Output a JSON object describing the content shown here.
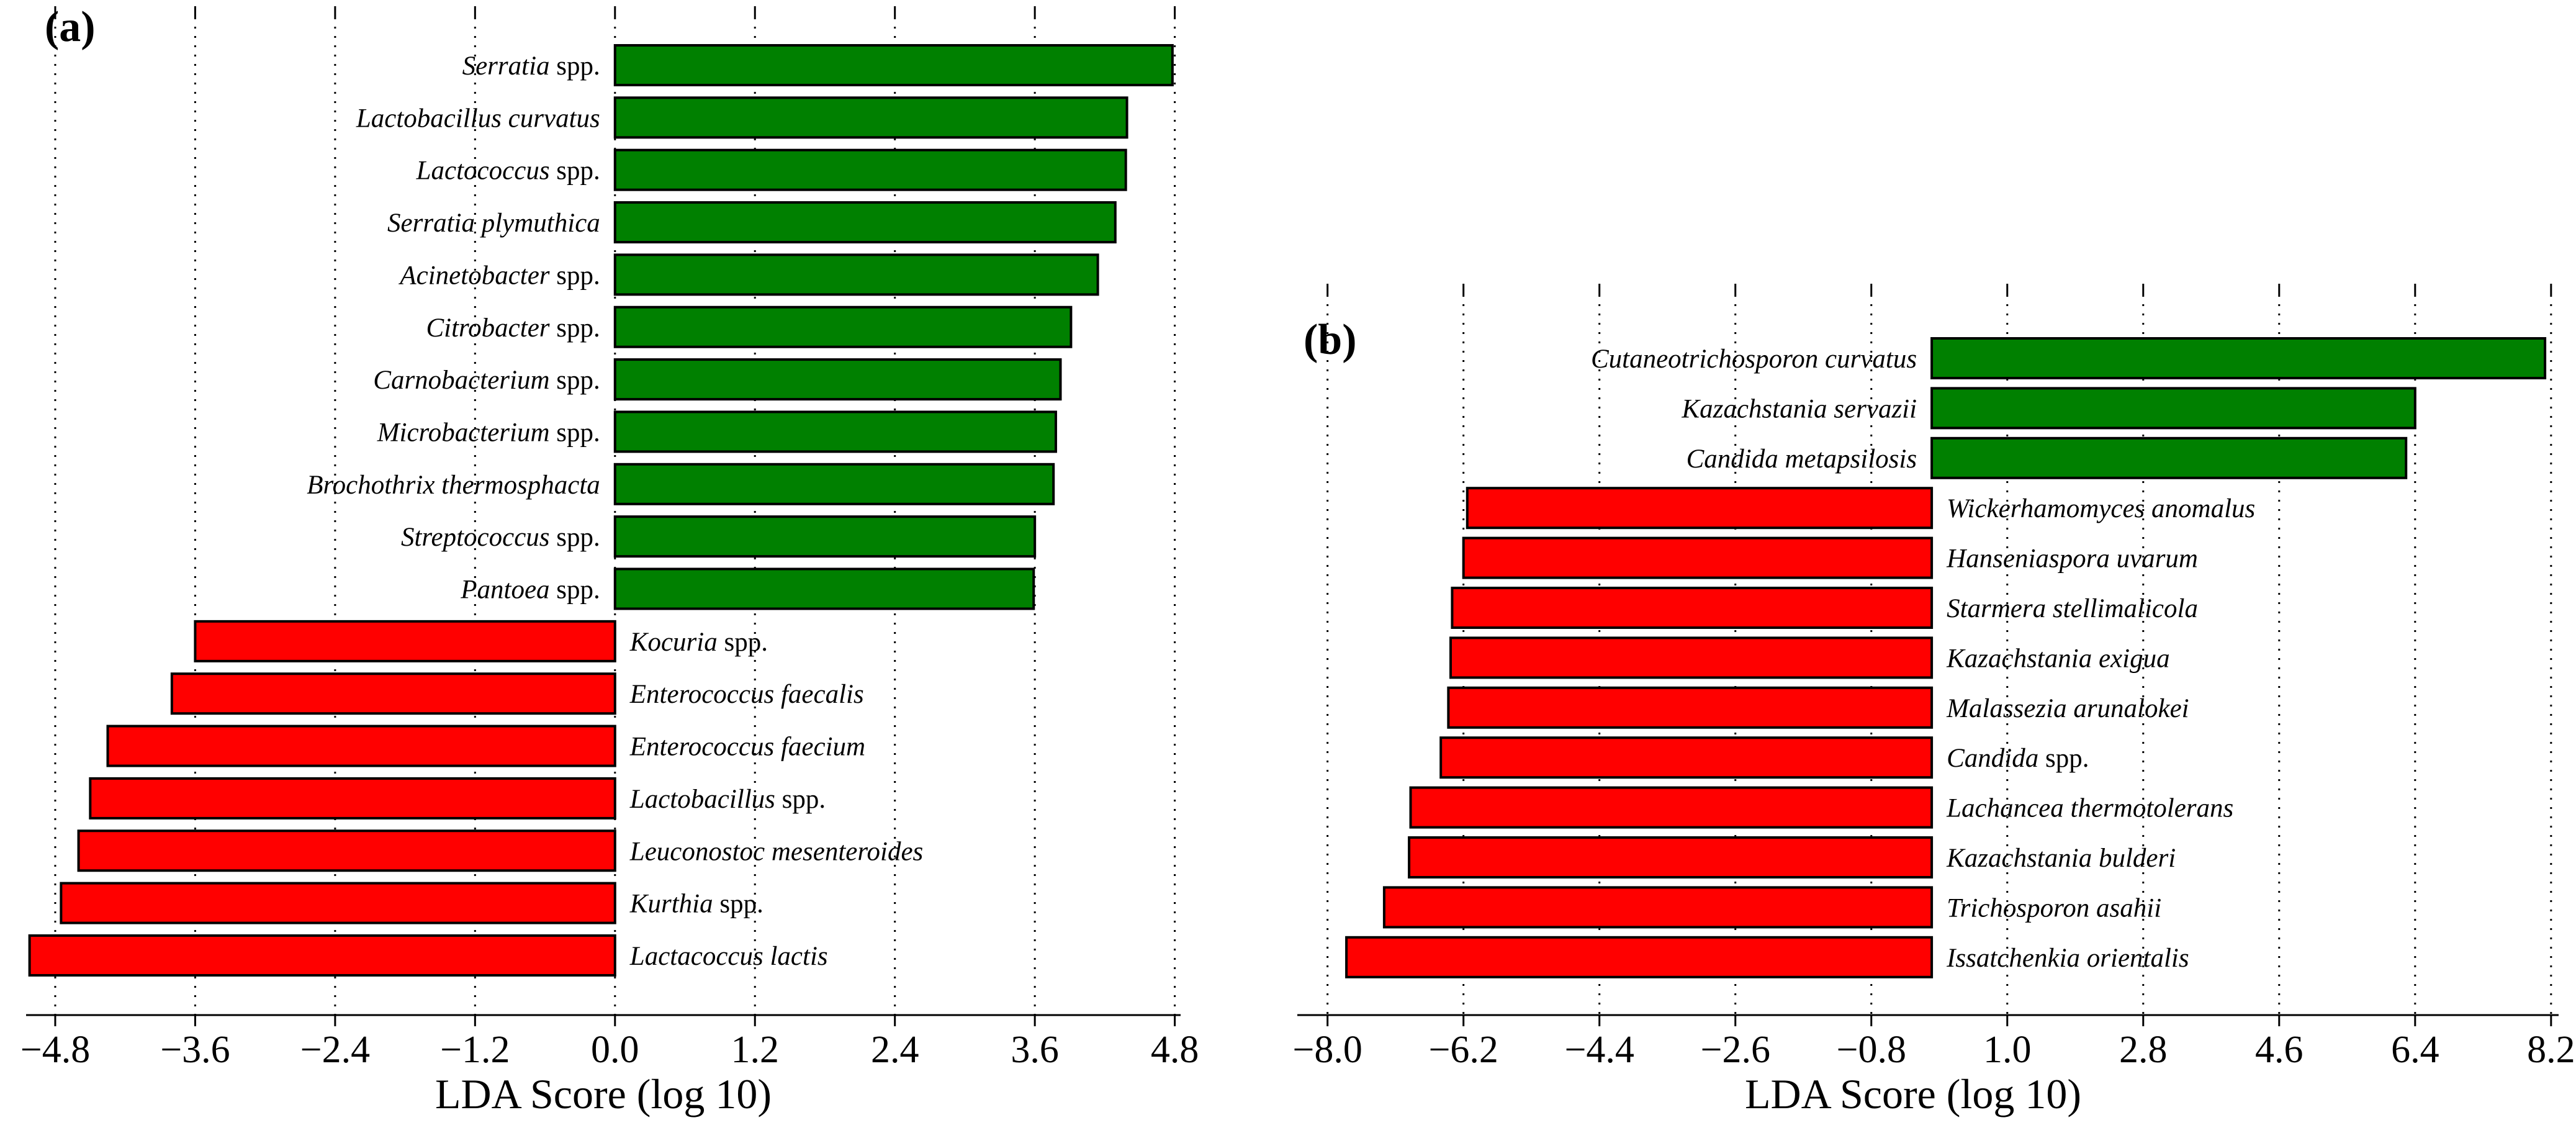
{
  "colors": {
    "enriched_positive": "#008000",
    "enriched_negative": "#ff0000",
    "bar_outline": "#000000"
  },
  "chart_data": [
    {
      "type": "bar",
      "orientation": "horizontal",
      "panel_label": "(a)",
      "xlabel": "LDA Score (log 10)",
      "xlim": [
        -5.05,
        4.85
      ],
      "ticks": [
        -4.8,
        -3.6,
        -2.4,
        -1.2,
        0.0,
        1.2,
        2.4,
        3.6,
        4.8
      ],
      "tick_labels": [
        "−4.8",
        "−3.6",
        "−2.4",
        "−1.2",
        "0.0",
        "1.2",
        "2.4",
        "3.6",
        "4.8"
      ],
      "grid": "dotted vertical at ticks",
      "categories": [
        {
          "parts": [
            {
              "text": "Serratia",
              "italic": true
            },
            {
              "text": " spp.",
              "italic": false
            }
          ]
        },
        {
          "parts": [
            {
              "text": "Lactobacillus curvatus",
              "italic": true
            }
          ]
        },
        {
          "parts": [
            {
              "text": "Lactococcus",
              "italic": true
            },
            {
              "text": " spp.",
              "italic": false
            }
          ]
        },
        {
          "parts": [
            {
              "text": "Serratia plymuthica",
              "italic": true
            }
          ]
        },
        {
          "parts": [
            {
              "text": "Acinetobacter",
              "italic": true
            },
            {
              "text": " spp.",
              "italic": false
            }
          ]
        },
        {
          "parts": [
            {
              "text": "Citrobacter",
              "italic": true
            },
            {
              "text": " spp.",
              "italic": false
            }
          ]
        },
        {
          "parts": [
            {
              "text": "Carnobacterium",
              "italic": true
            },
            {
              "text": " spp.",
              "italic": false
            }
          ]
        },
        {
          "parts": [
            {
              "text": "Microbacterium",
              "italic": true
            },
            {
              "text": " spp.",
              "italic": false
            }
          ]
        },
        {
          "parts": [
            {
              "text": "Brochothrix thermosphacta",
              "italic": true
            }
          ]
        },
        {
          "parts": [
            {
              "text": "Streptococcus",
              "italic": true
            },
            {
              "text": " spp.",
              "italic": false
            }
          ]
        },
        {
          "parts": [
            {
              "text": "Pantoea",
              "italic": true
            },
            {
              "text": " spp.",
              "italic": false
            }
          ]
        },
        {
          "parts": [
            {
              "text": "Kocuria",
              "italic": true
            },
            {
              "text": " spp.",
              "italic": false
            }
          ]
        },
        {
          "parts": [
            {
              "text": "Enterococcus faecalis",
              "italic": true
            }
          ]
        },
        {
          "parts": [
            {
              "text": "Enterococcus faecium",
              "italic": true
            }
          ]
        },
        {
          "parts": [
            {
              "text": "Lactobacillus",
              "italic": true
            },
            {
              "text": " spp.",
              "italic": false
            }
          ]
        },
        {
          "parts": [
            {
              "text": "Leuconostoc mesenteroides",
              "italic": true
            }
          ]
        },
        {
          "parts": [
            {
              "text": "Kurthia",
              "italic": true
            },
            {
              "text": " spp.",
              "italic": false
            }
          ]
        },
        {
          "parts": [
            {
              "text": "Lactacoccus lactis",
              "italic": true
            }
          ]
        }
      ],
      "values": [
        4.78,
        4.39,
        4.38,
        4.29,
        4.14,
        3.91,
        3.82,
        3.78,
        3.76,
        3.6,
        3.59,
        -3.6,
        -3.8,
        -4.35,
        -4.5,
        -4.6,
        -4.75,
        -5.02
      ]
    },
    {
      "type": "bar",
      "orientation": "horizontal",
      "panel_label": "(b)",
      "xlabel": "LDA Score (log 10)",
      "xlim": [
        -8.4,
        8.3
      ],
      "ticks": [
        -8.0,
        -6.2,
        -4.4,
        -2.6,
        -0.8,
        1.0,
        2.8,
        4.6,
        6.4,
        8.2
      ],
      "tick_labels": [
        "−8.0",
        "−6.2",
        "−4.4",
        "−2.6",
        "−0.8",
        "1.0",
        "2.8",
        "4.6",
        "6.4",
        "8.2"
      ],
      "grid": "dotted vertical at ticks",
      "categories": [
        {
          "parts": [
            {
              "text": "Cutaneotrichosporon curvatus",
              "italic": true
            }
          ]
        },
        {
          "parts": [
            {
              "text": "Kazachstania servazii",
              "italic": true
            }
          ]
        },
        {
          "parts": [
            {
              "text": "Candida metapsilosis",
              "italic": true
            }
          ]
        },
        {
          "parts": [
            {
              "text": "Wickerhamomyces anomalus",
              "italic": true
            }
          ]
        },
        {
          "parts": [
            {
              "text": "Hanseniaspora uvarum",
              "italic": true
            }
          ]
        },
        {
          "parts": [
            {
              "text": "Starmera stellimalicola",
              "italic": true
            }
          ]
        },
        {
          "parts": [
            {
              "text": "Kazachstania exigua",
              "italic": true
            }
          ]
        },
        {
          "parts": [
            {
              "text": "Malassezia arunalokei",
              "italic": true
            }
          ]
        },
        {
          "parts": [
            {
              "text": "Candida",
              "italic": true
            },
            {
              "text": " spp.",
              "italic": false
            }
          ]
        },
        {
          "parts": [
            {
              "text": "Lachancea thermotolerans",
              "italic": true
            }
          ]
        },
        {
          "parts": [
            {
              "text": "Kazachstania bulderi",
              "italic": true
            }
          ]
        },
        {
          "parts": [
            {
              "text": "Trichosporon asahii",
              "italic": true
            }
          ]
        },
        {
          "parts": [
            {
              "text": "Issatchenkia orientalis",
              "italic": true
            }
          ]
        }
      ],
      "values": [
        8.12,
        6.4,
        6.28,
        -6.15,
        -6.2,
        -6.35,
        -6.37,
        -6.4,
        -6.5,
        -6.9,
        -6.92,
        -7.25,
        -7.75
      ]
    }
  ]
}
